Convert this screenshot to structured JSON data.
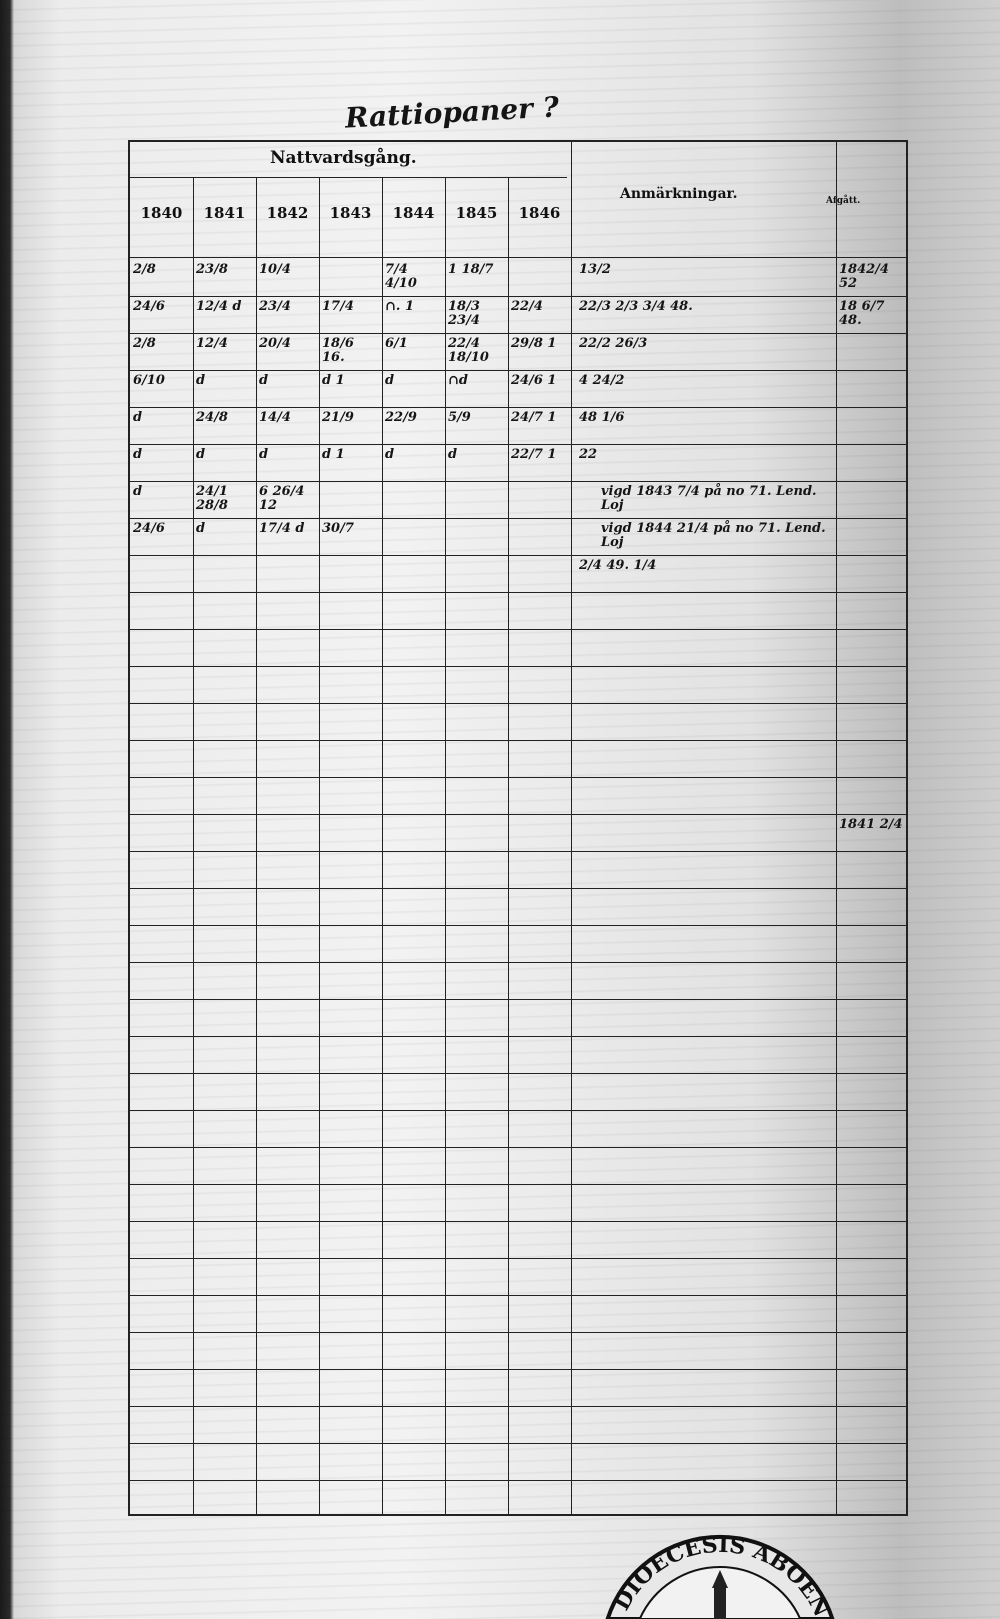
{
  "title_handwritten": "Rattiopaner ?",
  "header": {
    "group_label": "Nattvardsgång.",
    "years": [
      "1840",
      "1841",
      "1842",
      "1843",
      "1844",
      "1845",
      "1846"
    ],
    "remarks_label": "Anmärkningar.",
    "departed_label": "Afgått."
  },
  "rows": [
    {
      "cells": [
        "2/8",
        "23/8",
        "10/4",
        "",
        "7/4  4/10",
        "1 18/7"
      ],
      "remarks": "13/2",
      "departed": "1842/4 52"
    },
    {
      "cells": [
        "24/6",
        "12/4 d",
        "23/4",
        "17/4",
        "∩. 1",
        "18/3 23/4",
        "22/4"
      ],
      "remarks": "22/3 2/3 3/4 48.",
      "departed": "18 6/7 48."
    },
    {
      "cells": [
        "2/8",
        "12/4",
        "20/4",
        "18/6 16.",
        "6/1",
        "22/4 18/10",
        "29/8 1"
      ],
      "remarks": "22/2 26/3",
      "departed": ""
    },
    {
      "cells": [
        "6/10",
        "d",
        "d",
        "d 1",
        "d",
        "∩d",
        "24/6 1"
      ],
      "remarks": "4 24/2",
      "departed": ""
    },
    {
      "cells": [
        "d",
        "24/8",
        "14/4",
        "21/9",
        "22/9",
        "5/9",
        "24/7 1"
      ],
      "remarks": "48 1/6",
      "departed": ""
    },
    {
      "cells": [
        "d",
        "d",
        "d",
        "d 1",
        "d",
        "d",
        "22/7 1"
      ],
      "remarks": "22",
      "departed": ""
    },
    {
      "cells": [
        "d",
        "24/1 28/8",
        "6 26/4 12"
      ],
      "remarks": "vigd 1843 7/4 på no 71. Lend. Loj",
      "departed": ""
    },
    {
      "cells": [
        "24/6",
        "d",
        "17/4 d",
        "30/7"
      ],
      "remarks": "vigd 1844 21/4 på no 71. Lend. Loj",
      "departed": ""
    },
    {
      "cells": [],
      "remarks": "2/4 49. 1/4",
      "departed": ""
    }
  ],
  "late_entry": {
    "departed": "1841 2/4"
  },
  "stamp_text": "DIOECESIS ABOENSIS"
}
